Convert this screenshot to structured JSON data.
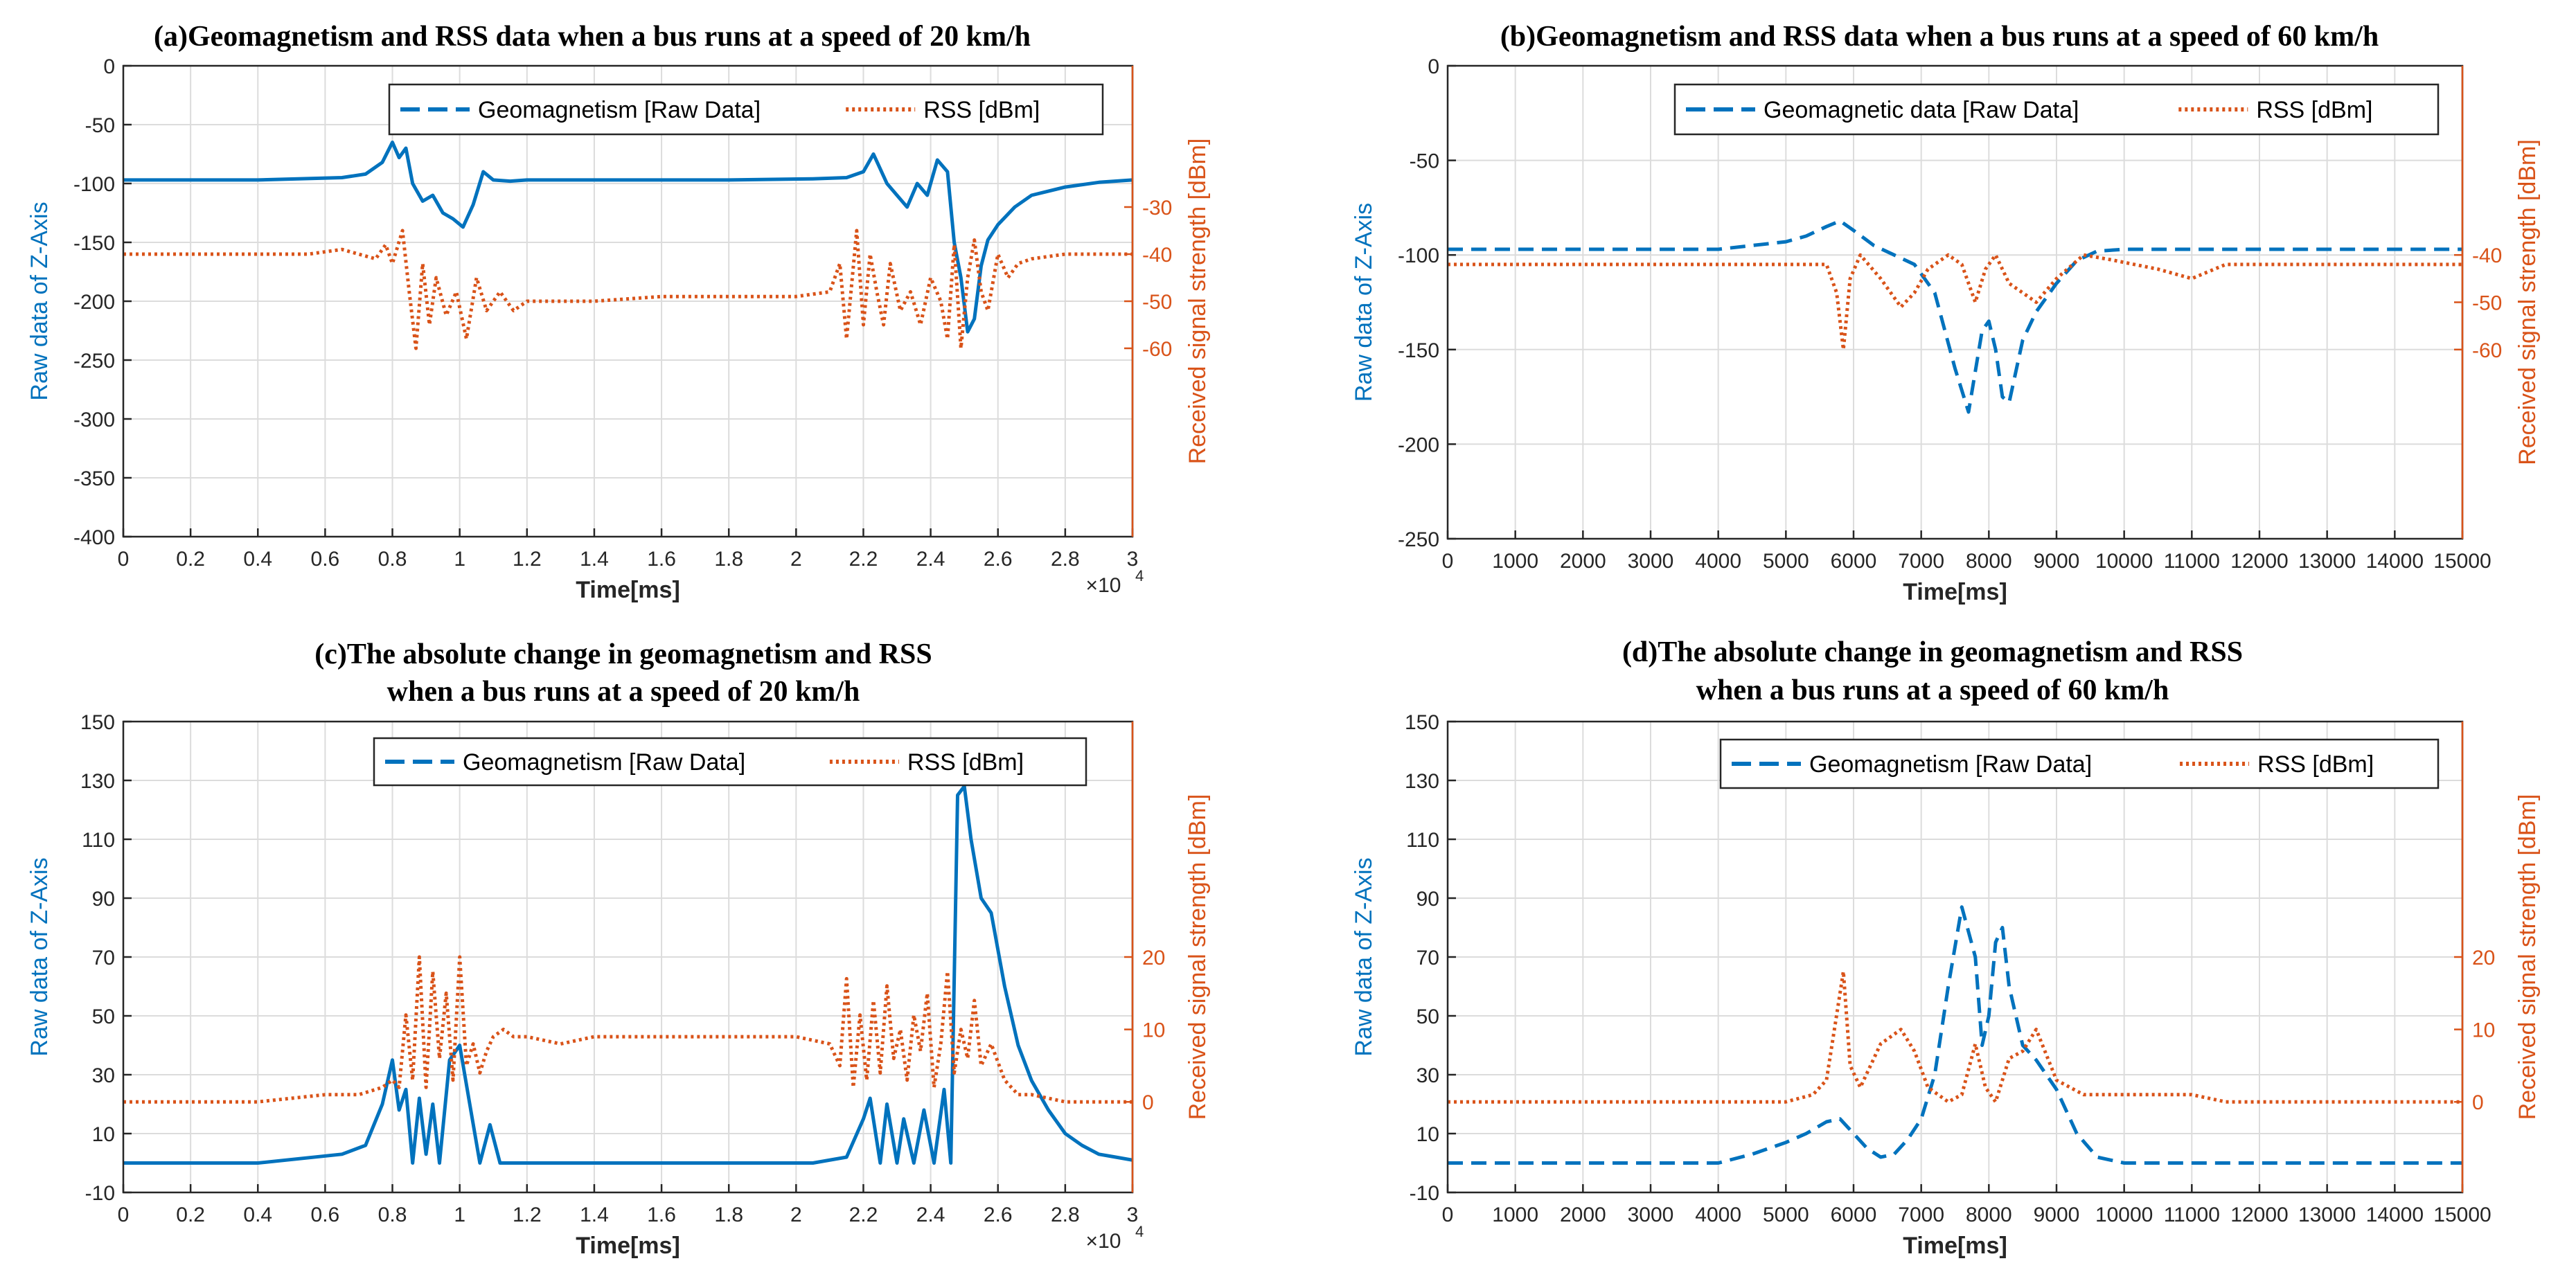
{
  "chart_data": [
    {
      "id": "a",
      "type": "line",
      "title": "(a)Geomagnetism and RSS data when a bus runs at a speed of 20 km/h",
      "xlabel": "Time[ms]",
      "ylabel_left": "Raw data of Z-Axis",
      "ylabel_right": "Received signal strength [dBm]",
      "xlim": [
        0,
        30000
      ],
      "x_ticks": [
        0,
        2000,
        4000,
        6000,
        8000,
        10000,
        12000,
        14000,
        16000,
        18000,
        20000,
        22000,
        24000,
        26000,
        28000,
        30000
      ],
      "x_tick_labels": [
        "0",
        "0.2",
        "0.4",
        "0.6",
        "0.8",
        "1",
        "1.2",
        "1.4",
        "1.6",
        "1.8",
        "2",
        "2.2",
        "2.4",
        "2.6",
        "2.8",
        "3"
      ],
      "x_exponent_label": "×10",
      "x_exponent_power": "4",
      "ylim_left": [
        -400,
        0
      ],
      "y_ticks_left": [
        -400,
        -350,
        -300,
        -250,
        -200,
        -150,
        -100,
        -50,
        0
      ],
      "y_tick_labels_left": [
        "-400",
        "-350",
        "-300",
        "-250",
        "-200",
        "-150",
        "-100",
        "-50",
        "0"
      ],
      "ylim_right": [
        -100,
        0
      ],
      "y_ticks_right": [
        -60,
        -50,
        -40,
        -30
      ],
      "y_tick_labels_right": [
        "-60",
        "-50",
        "-40",
        "-30"
      ],
      "legend_position": "top-right",
      "series": [
        {
          "name": "Geomagnetism [Raw Data]",
          "axis": "left",
          "style": "solid",
          "color": "#0072BD",
          "x": [
            0,
            4000,
            6500,
            7200,
            7700,
            8000,
            8200,
            8400,
            8600,
            8900,
            9200,
            9500,
            9800,
            10100,
            10400,
            10700,
            11000,
            11500,
            12000,
            14000,
            18000,
            20500,
            21500,
            22000,
            22300,
            22700,
            23000,
            23300,
            23600,
            23900,
            24200,
            24500,
            24700,
            24900,
            25100,
            25300,
            25500,
            25700,
            26000,
            26500,
            27000,
            28000,
            29000,
            30000
          ],
          "y": [
            -97,
            -97,
            -95,
            -92,
            -82,
            -65,
            -78,
            -70,
            -100,
            -115,
            -110,
            -125,
            -130,
            -137,
            -118,
            -90,
            -97,
            -98,
            -97,
            -97,
            -97,
            -96,
            -95,
            -90,
            -75,
            -100,
            -110,
            -120,
            -100,
            -110,
            -80,
            -90,
            -150,
            -180,
            -226,
            -215,
            -170,
            -148,
            -135,
            -120,
            -110,
            -103,
            -99,
            -97
          ]
        },
        {
          "name": "RSS [dBm]",
          "axis": "right",
          "style": "dotted",
          "color": "#D95319",
          "x": [
            0,
            2000,
            4000,
            5500,
            6500,
            7500,
            7800,
            8000,
            8300,
            8500,
            8700,
            8900,
            9100,
            9300,
            9600,
            9900,
            10200,
            10500,
            10800,
            11200,
            11600,
            12000,
            14000,
            16000,
            18000,
            20000,
            21000,
            21300,
            21500,
            21800,
            22000,
            22200,
            22400,
            22600,
            22800,
            23100,
            23400,
            23700,
            24000,
            24300,
            24500,
            24700,
            24900,
            25100,
            25300,
            25500,
            25700,
            26000,
            26300,
            26600,
            27000,
            28000,
            29000,
            30000
          ],
          "y": [
            -40,
            -40,
            -40,
            -40,
            -39,
            -41,
            -38,
            -42,
            -35,
            -48,
            -60,
            -42,
            -55,
            -45,
            -53,
            -48,
            -58,
            -45,
            -52,
            -48,
            -52,
            -50,
            -50,
            -49,
            -49,
            -49,
            -48,
            -42,
            -58,
            -35,
            -55,
            -40,
            -48,
            -55,
            -42,
            -52,
            -48,
            -55,
            -45,
            -50,
            -58,
            -38,
            -60,
            -45,
            -37,
            -48,
            -52,
            -40,
            -45,
            -42,
            -41,
            -40,
            -40,
            -40
          ]
        }
      ]
    },
    {
      "id": "b",
      "type": "line",
      "title": "(b)Geomagnetism and RSS data when a bus runs at a speed of 60 km/h",
      "xlabel": "Time[ms]",
      "ylabel_left": "Raw data of Z-Axis",
      "ylabel_right": "Received signal strength [dBm]",
      "xlim": [
        0,
        15000
      ],
      "x_ticks": [
        0,
        1000,
        2000,
        3000,
        4000,
        5000,
        6000,
        7000,
        8000,
        9000,
        10000,
        11000,
        12000,
        13000,
        14000,
        15000
      ],
      "x_tick_labels": [
        "0",
        "1000",
        "2000",
        "3000",
        "4000",
        "5000",
        "6000",
        "7000",
        "8000",
        "9000",
        "10000",
        "11000",
        "12000",
        "13000",
        "14000",
        "15000"
      ],
      "ylim_left": [
        -250,
        0
      ],
      "y_ticks_left": [
        -250,
        -200,
        -150,
        -100,
        -50,
        0
      ],
      "y_tick_labels_left": [
        "-250",
        "-200",
        "-150",
        "-100",
        "-50",
        "0"
      ],
      "ylim_right": [
        -100,
        0
      ],
      "y_ticks_right": [
        -60,
        -50,
        -40
      ],
      "y_tick_labels_right": [
        "-60",
        "-50",
        "-40"
      ],
      "legend_position": "top-right",
      "series": [
        {
          "name": "Geomagnetic data [Raw Data]",
          "axis": "left",
          "style": "dashed",
          "color": "#0072BD",
          "x": [
            0,
            4000,
            4500,
            5000,
            5300,
            5600,
            5800,
            6000,
            6300,
            6600,
            6900,
            7200,
            7500,
            7700,
            7900,
            8000,
            8100,
            8200,
            8300,
            8500,
            8700,
            9000,
            9300,
            9600,
            10000,
            12000,
            14000,
            15000
          ],
          "y": [
            -97,
            -97,
            -95,
            -93,
            -90,
            -85,
            -82,
            -87,
            -95,
            -100,
            -105,
            -120,
            -160,
            -183,
            -140,
            -135,
            -150,
            -175,
            -178,
            -145,
            -130,
            -115,
            -103,
            -98,
            -97,
            -97,
            -97,
            -97
          ]
        },
        {
          "name": "RSS [dBm]",
          "axis": "right",
          "style": "dotted",
          "color": "#D95319",
          "x": [
            0,
            3000,
            5000,
            5400,
            5600,
            5750,
            5850,
            5950,
            6100,
            6400,
            6700,
            6900,
            7100,
            7400,
            7600,
            7800,
            7950,
            8100,
            8300,
            8500,
            8700,
            9000,
            9400,
            9800,
            10500,
            11000,
            11500,
            12000,
            13000,
            14000,
            15000
          ],
          "y": [
            -42,
            -42,
            -42,
            -42,
            -42,
            -48,
            -60,
            -45,
            -40,
            -45,
            -51,
            -48,
            -43,
            -40,
            -42,
            -50,
            -43,
            -40,
            -46,
            -48,
            -50,
            -45,
            -40,
            -41,
            -43,
            -45,
            -42,
            -42,
            -42,
            -42,
            -42
          ]
        }
      ]
    },
    {
      "id": "c",
      "type": "line",
      "title_line1": "(c)The absolute change in geomagnetism and RSS",
      "title_line2": "when a bus runs at a speed of 20 km/h",
      "xlabel": "Time[ms]",
      "ylabel_left": "Raw data of Z-Axis",
      "ylabel_right": "Received signal strength [dBm]",
      "xlim": [
        0,
        30000
      ],
      "x_ticks": [
        0,
        2000,
        4000,
        6000,
        8000,
        10000,
        12000,
        14000,
        16000,
        18000,
        20000,
        22000,
        24000,
        26000,
        28000,
        30000
      ],
      "x_tick_labels": [
        "0",
        "0.2",
        "0.4",
        "0.6",
        "0.8",
        "1",
        "1.2",
        "1.4",
        "1.6",
        "1.8",
        "2",
        "2.2",
        "2.4",
        "2.6",
        "2.8",
        "3"
      ],
      "x_exponent_label": "×10",
      "x_exponent_power": "4",
      "ylim_left": [
        -10,
        150
      ],
      "y_ticks_left": [
        -10,
        10,
        30,
        50,
        70,
        90,
        110,
        130,
        150
      ],
      "y_tick_labels_left": [
        "-10",
        "10",
        "30",
        "50",
        "70",
        "90",
        "110",
        "130",
        "150"
      ],
      "ylim_right": [
        -12.5,
        52.5
      ],
      "y_ticks_right": [
        0,
        10,
        20
      ],
      "y_tick_labels_right": [
        "0",
        "10",
        "20"
      ],
      "legend_position": "top-right",
      "series": [
        {
          "name": "Geomagnetism [Raw Data]",
          "axis": "left",
          "style": "solid",
          "color": "#0072BD",
          "x": [
            0,
            4000,
            6500,
            7200,
            7700,
            8000,
            8200,
            8400,
            8600,
            8800,
            9000,
            9200,
            9400,
            9700,
            10000,
            10300,
            10600,
            10900,
            11200,
            11500,
            12000,
            14000,
            18000,
            20500,
            21500,
            22000,
            22200,
            22500,
            22700,
            23000,
            23200,
            23500,
            23800,
            24100,
            24400,
            24600,
            24800,
            25000,
            25200,
            25500,
            25800,
            26200,
            26600,
            27000,
            27500,
            28000,
            28500,
            29000,
            29500,
            30000
          ],
          "y": [
            0,
            0,
            3,
            6,
            20,
            35,
            18,
            25,
            0,
            22,
            3,
            20,
            0,
            35,
            40,
            20,
            0,
            13,
            0,
            0,
            0,
            0,
            0,
            0,
            2,
            15,
            22,
            0,
            20,
            0,
            15,
            0,
            18,
            0,
            25,
            0,
            125,
            128,
            110,
            90,
            85,
            60,
            40,
            28,
            18,
            10,
            6,
            3,
            2,
            1
          ]
        },
        {
          "name": "RSS [dBm]",
          "axis": "right",
          "style": "dotted",
          "color": "#D95319",
          "x": [
            0,
            2000,
            4000,
            6000,
            7000,
            7700,
            8000,
            8200,
            8400,
            8600,
            8800,
            9000,
            9200,
            9400,
            9600,
            9800,
            10000,
            10200,
            10400,
            10600,
            10800,
            11000,
            11300,
            11600,
            12000,
            13000,
            14000,
            16000,
            18000,
            20000,
            21000,
            21300,
            21500,
            21700,
            21900,
            22100,
            22300,
            22500,
            22700,
            22900,
            23100,
            23300,
            23500,
            23700,
            23900,
            24100,
            24300,
            24500,
            24700,
            24900,
            25100,
            25300,
            25500,
            25800,
            26200,
            26600,
            27000,
            28000,
            29000,
            30000
          ],
          "y": [
            0,
            0,
            0,
            1,
            1,
            2,
            3,
            2,
            12,
            3,
            20,
            2,
            18,
            6,
            15,
            3,
            20,
            5,
            8,
            4,
            7,
            9,
            10,
            9,
            9,
            8,
            9,
            9,
            9,
            9,
            8,
            5,
            17,
            2,
            12,
            3,
            14,
            4,
            16,
            6,
            10,
            3,
            12,
            7,
            15,
            2,
            8,
            18,
            4,
            10,
            6,
            14,
            5,
            8,
            3,
            1,
            1,
            0,
            0,
            0
          ]
        }
      ]
    },
    {
      "id": "d",
      "type": "line",
      "title_line1": "(d)The absolute change in geomagnetism and RSS",
      "title_line2": "when a bus runs at a speed of 60 km/h",
      "xlabel": "Time[ms]",
      "ylabel_left": "Raw data of Z-Axis",
      "ylabel_right": "Received signal strength [dBm]",
      "xlim": [
        0,
        15000
      ],
      "x_ticks": [
        0,
        1000,
        2000,
        3000,
        4000,
        5000,
        6000,
        7000,
        8000,
        9000,
        10000,
        11000,
        12000,
        13000,
        14000,
        15000
      ],
      "x_tick_labels": [
        "0",
        "1000",
        "2000",
        "3000",
        "4000",
        "5000",
        "6000",
        "7000",
        "8000",
        "9000",
        "10000",
        "11000",
        "12000",
        "13000",
        "14000",
        "15000"
      ],
      "ylim_left": [
        -10,
        150
      ],
      "y_ticks_left": [
        -10,
        10,
        30,
        50,
        70,
        90,
        110,
        130,
        150
      ],
      "y_tick_labels_left": [
        "-10",
        "10",
        "30",
        "50",
        "70",
        "90",
        "110",
        "130",
        "150"
      ],
      "ylim_right": [
        -12.5,
        52.5
      ],
      "y_ticks_right": [
        0,
        10,
        20
      ],
      "y_tick_labels_right": [
        "0",
        "10",
        "20"
      ],
      "legend_position": "top-right",
      "series": [
        {
          "name": "Geomagnetism [Raw Data]",
          "axis": "left",
          "style": "dashed",
          "color": "#0072BD",
          "x": [
            0,
            4000,
            4500,
            5000,
            5300,
            5600,
            5800,
            6000,
            6200,
            6400,
            6600,
            6800,
            7000,
            7200,
            7400,
            7600,
            7800,
            7900,
            8000,
            8100,
            8200,
            8300,
            8500,
            8700,
            9000,
            9300,
            9600,
            10000,
            12000,
            14000,
            15000
          ],
          "y": [
            0,
            0,
            3,
            7,
            10,
            14,
            15,
            10,
            5,
            2,
            3,
            8,
            15,
            30,
            60,
            87,
            70,
            40,
            50,
            75,
            80,
            60,
            40,
            35,
            25,
            10,
            2,
            0,
            0,
            0,
            0
          ]
        },
        {
          "name": "RSS [dBm]",
          "axis": "right",
          "style": "dotted",
          "color": "#D95319",
          "x": [
            0,
            3000,
            5000,
            5400,
            5600,
            5750,
            5850,
            5950,
            6100,
            6400,
            6700,
            6900,
            7100,
            7400,
            7600,
            7800,
            7950,
            8100,
            8300,
            8500,
            8700,
            9000,
            9400,
            9800,
            10500,
            11000,
            11500,
            12000,
            13000,
            14000,
            15000
          ],
          "y": [
            0,
            0,
            0,
            1,
            3,
            12,
            18,
            5,
            2,
            8,
            10,
            7,
            2,
            0,
            1,
            8,
            2,
            0,
            6,
            7,
            10,
            3,
            1,
            1,
            1,
            1,
            0,
            0,
            0,
            0,
            0
          ]
        }
      ]
    }
  ]
}
